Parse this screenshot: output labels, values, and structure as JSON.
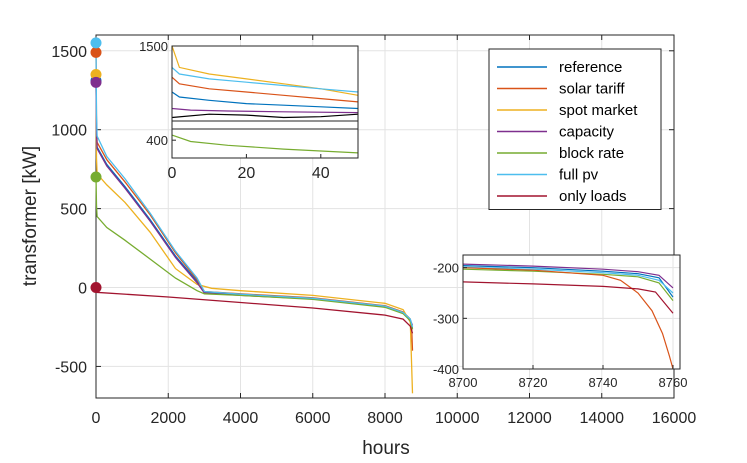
{
  "chart_data": {
    "type": "line",
    "xlabel": "hours",
    "ylabel": "transformer [kW]",
    "xlim": [
      0,
      16000
    ],
    "ylim": [
      -700,
      1600
    ],
    "xticks": [
      "0",
      "2000",
      "4000",
      "6000",
      "8000",
      "10000",
      "12000",
      "14000",
      "16000"
    ],
    "yticks": [
      "-500",
      "0",
      "500",
      "1000",
      "1500"
    ],
    "grid": true,
    "legend_position": "top-right",
    "series": [
      {
        "name": "reference",
        "color": "#0072BD",
        "start": 1310,
        "points": [
          [
            0,
            1310
          ],
          [
            15,
            1000
          ],
          [
            30,
            890
          ],
          [
            300,
            780
          ],
          [
            800,
            640
          ],
          [
            1500,
            430
          ],
          [
            2200,
            200
          ],
          [
            2800,
            40
          ],
          [
            3000,
            -30
          ],
          [
            4000,
            -45
          ],
          [
            6000,
            -70
          ],
          [
            8000,
            -120
          ],
          [
            8500,
            -160
          ],
          [
            8700,
            -210
          ],
          [
            8760,
            -260
          ]
        ]
      },
      {
        "name": "solar tariff",
        "color": "#D95319",
        "start": 1490,
        "points": [
          [
            0,
            1490
          ],
          [
            15,
            1050
          ],
          [
            30,
            920
          ],
          [
            300,
            810
          ],
          [
            800,
            670
          ],
          [
            1500,
            460
          ],
          [
            2200,
            220
          ],
          [
            2800,
            50
          ],
          [
            3000,
            -25
          ],
          [
            4000,
            -40
          ],
          [
            6000,
            -65
          ],
          [
            8000,
            -115
          ],
          [
            8500,
            -155
          ],
          [
            8700,
            -200
          ],
          [
            8740,
            -260
          ],
          [
            8760,
            -400
          ]
        ]
      },
      {
        "name": "spot market",
        "color": "#EDB120",
        "start": 1350,
        "points": [
          [
            0,
            1350
          ],
          [
            15,
            820
          ],
          [
            30,
            720
          ],
          [
            300,
            650
          ],
          [
            800,
            540
          ],
          [
            1500,
            350
          ],
          [
            2200,
            120
          ],
          [
            2800,
            20
          ],
          [
            3200,
            -5
          ],
          [
            4000,
            -20
          ],
          [
            6000,
            -50
          ],
          [
            8000,
            -100
          ],
          [
            8500,
            -140
          ],
          [
            8700,
            -220
          ],
          [
            8760,
            -670
          ]
        ]
      },
      {
        "name": "capacity",
        "color": "#7E2F8E",
        "start": 1300,
        "points": [
          [
            0,
            1300
          ],
          [
            15,
            990
          ],
          [
            30,
            880
          ],
          [
            300,
            770
          ],
          [
            800,
            630
          ],
          [
            1500,
            420
          ],
          [
            2200,
            190
          ],
          [
            2800,
            30
          ],
          [
            3000,
            -35
          ],
          [
            4000,
            -50
          ],
          [
            6000,
            -72
          ],
          [
            8000,
            -122
          ],
          [
            8500,
            -162
          ],
          [
            8700,
            -205
          ],
          [
            8760,
            -240
          ]
        ]
      },
      {
        "name": "block rate",
        "color": "#77AC30",
        "start": 700,
        "points": [
          [
            0,
            700
          ],
          [
            15,
            520
          ],
          [
            30,
            450
          ],
          [
            300,
            380
          ],
          [
            800,
            300
          ],
          [
            1500,
            180
          ],
          [
            2200,
            60
          ],
          [
            2800,
            -20
          ],
          [
            3000,
            -40
          ],
          [
            4000,
            -50
          ],
          [
            6000,
            -75
          ],
          [
            8000,
            -125
          ],
          [
            8500,
            -165
          ],
          [
            8700,
            -210
          ],
          [
            8760,
            -265
          ]
        ]
      },
      {
        "name": "full pv",
        "color": "#4DBEEE",
        "start": 1550,
        "points": [
          [
            0,
            1550
          ],
          [
            15,
            1100
          ],
          [
            30,
            960
          ],
          [
            300,
            830
          ],
          [
            800,
            690
          ],
          [
            1500,
            470
          ],
          [
            2200,
            230
          ],
          [
            2800,
            60
          ],
          [
            3000,
            -25
          ],
          [
            4000,
            -42
          ],
          [
            6000,
            -68
          ],
          [
            8000,
            -118
          ],
          [
            8500,
            -158
          ],
          [
            8700,
            -200
          ],
          [
            8760,
            -250
          ]
        ]
      },
      {
        "name": "only loads",
        "color": "#A2142F",
        "start": 0,
        "points": [
          [
            0,
            -30
          ],
          [
            2000,
            -60
          ],
          [
            4000,
            -95
          ],
          [
            6000,
            -130
          ],
          [
            8000,
            -175
          ],
          [
            8500,
            -200
          ],
          [
            8700,
            -245
          ],
          [
            8760,
            -290
          ]
        ]
      }
    ],
    "insets": [
      {
        "name": "inset-start",
        "xlim": [
          0,
          50
        ],
        "ylim": [
          300,
          1500
        ],
        "xticks": [
          "0",
          "20",
          "40"
        ],
        "yticks": [
          "400",
          "1500"
        ],
        "broken_axis": true,
        "series": [
          {
            "name": "spot market",
            "color": "#EDB120",
            "points": [
              [
                0,
                1500
              ],
              [
                2,
                1370
              ],
              [
                10,
                1330
              ],
              [
                20,
                1300
              ],
              [
                30,
                1270
              ],
              [
                40,
                1240
              ],
              [
                50,
                1200
              ]
            ]
          },
          {
            "name": "full pv",
            "color": "#4DBEEE",
            "points": [
              [
                0,
                1370
              ],
              [
                2,
                1330
              ],
              [
                10,
                1300
              ],
              [
                20,
                1280
              ],
              [
                30,
                1260
              ],
              [
                40,
                1240
              ],
              [
                50,
                1220
              ]
            ]
          },
          {
            "name": "solar tariff",
            "color": "#D95319",
            "points": [
              [
                0,
                1310
              ],
              [
                2,
                1270
              ],
              [
                10,
                1240
              ],
              [
                20,
                1220
              ],
              [
                30,
                1200
              ],
              [
                40,
                1180
              ],
              [
                50,
                1160
              ]
            ]
          },
          {
            "name": "reference",
            "color": "#0072BD",
            "points": [
              [
                0,
                1220
              ],
              [
                2,
                1190
              ],
              [
                10,
                1170
              ],
              [
                20,
                1150
              ],
              [
                30,
                1140
              ],
              [
                40,
                1130
              ],
              [
                50,
                1120
              ]
            ]
          },
          {
            "name": "capacity",
            "color": "#7E2F8E",
            "points": [
              [
                0,
                1120
              ],
              [
                5,
                1110
              ],
              [
                15,
                1105
              ],
              [
                30,
                1100
              ],
              [
                50,
                1095
              ]
            ]
          },
          {
            "name": "only loads",
            "color": "#000000",
            "points": [
              [
                0,
                1065
              ],
              [
                10,
                1085
              ],
              [
                20,
                1080
              ],
              [
                30,
                1065
              ],
              [
                40,
                1070
              ],
              [
                50,
                1085
              ]
            ]
          },
          {
            "name": "block rate",
            "color": "#77AC30",
            "points": [
              [
                0,
                420
              ],
              [
                5,
                395
              ],
              [
                15,
                380
              ],
              [
                30,
                365
              ],
              [
                50,
                350
              ]
            ]
          }
        ]
      },
      {
        "name": "inset-end",
        "xlim": [
          8700,
          8762
        ],
        "ylim": [
          -400,
          -175
        ],
        "xticks": [
          "8700",
          "8720",
          "8740",
          "8760"
        ],
        "yticks": [
          "-200",
          "-300",
          "-400"
        ],
        "series": [
          {
            "name": "capacity",
            "color": "#7E2F8E",
            "points": [
              [
                8700,
                -193
              ],
              [
                8720,
                -197
              ],
              [
                8740,
                -203
              ],
              [
                8750,
                -208
              ],
              [
                8756,
                -215
              ],
              [
                8760,
                -240
              ]
            ]
          },
          {
            "name": "reference",
            "color": "#0072BD",
            "points": [
              [
                8700,
                -196
              ],
              [
                8720,
                -200
              ],
              [
                8740,
                -207
              ],
              [
                8750,
                -212
              ],
              [
                8756,
                -220
              ],
              [
                8760,
                -258
              ]
            ]
          },
          {
            "name": "full pv",
            "color": "#4DBEEE",
            "points": [
              [
                8700,
                -199
              ],
              [
                8720,
                -203
              ],
              [
                8740,
                -210
              ],
              [
                8750,
                -215
              ],
              [
                8756,
                -225
              ],
              [
                8760,
                -250
              ]
            ]
          },
          {
            "name": "block rate",
            "color": "#77AC30",
            "points": [
              [
                8700,
                -203
              ],
              [
                8720,
                -207
              ],
              [
                8740,
                -213
              ],
              [
                8750,
                -218
              ],
              [
                8756,
                -230
              ],
              [
                8760,
                -265
              ]
            ]
          },
          {
            "name": "solar tariff",
            "color": "#D95319",
            "points": [
              [
                8700,
                -200
              ],
              [
                8720,
                -205
              ],
              [
                8740,
                -215
              ],
              [
                8745,
                -225
              ],
              [
                8750,
                -250
              ],
              [
                8754,
                -285
              ],
              [
                8757,
                -330
              ],
              [
                8759,
                -375
              ],
              [
                8760,
                -400
              ]
            ]
          },
          {
            "name": "only loads",
            "color": "#A2142F",
            "points": [
              [
                8700,
                -228
              ],
              [
                8720,
                -232
              ],
              [
                8740,
                -237
              ],
              [
                8750,
                -242
              ],
              [
                8755,
                -248
              ],
              [
                8760,
                -290
              ]
            ]
          }
        ]
      }
    ]
  }
}
